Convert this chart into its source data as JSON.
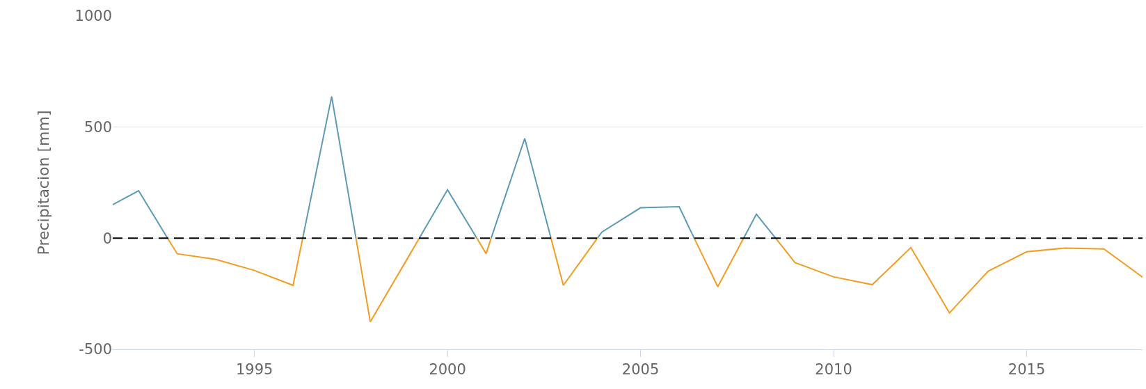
{
  "chart_data": {
    "type": "line",
    "ylabel": "Precipitacion [mm]",
    "series": [
      {
        "color": "#5d9ab5",
        "x": [
          1991.33,
          1992,
          1992.75,
          1995,
          1996.25,
          1997,
          1997.63,
          1998,
          1999.27,
          2000,
          2000.76,
          2001,
          2001.13,
          2002,
          2002.68,
          2003,
          2003.88,
          2004,
          2005,
          2006,
          2006.39,
          2007,
          2007.67,
          2008,
          2008.5
        ],
        "values": [
          151,
          214,
          0,
          null,
          0,
          638,
          0,
          null,
          0,
          218,
          0,
          null,
          0,
          449,
          0,
          null,
          0,
          28,
          137,
          142,
          0,
          null,
          0,
          108,
          0
        ]
      },
      {
        "color": "#f39c21",
        "x": [
          1992.75,
          1993,
          1994,
          1995,
          1996,
          1996.25,
          1997,
          1997.63,
          1998,
          1999,
          1999.27,
          2000,
          2000.76,
          2001,
          2001.13,
          2002,
          2002.68,
          2003,
          2003.88,
          2005,
          2006.39,
          2007,
          2007.67,
          2008,
          2008.5,
          2009,
          2010,
          2011,
          2012,
          2013,
          2014,
          2015,
          2016,
          2017,
          2018
        ],
        "values": [
          0,
          -70,
          -95,
          -145,
          -212,
          0,
          null,
          0,
          -376,
          -80,
          0,
          null,
          0,
          -69,
          0,
          null,
          0,
          -212,
          0,
          null,
          0,
          -218,
          0,
          null,
          0,
          -110,
          -174,
          -209,
          -42,
          -336,
          -149,
          -61,
          -44,
          -48,
          -175
        ]
      }
    ],
    "xlim": [
      1991.33,
      2018
    ],
    "xticks": [
      1995,
      2000,
      2005,
      2010,
      2015
    ],
    "ylim": [
      -500,
      1000
    ],
    "yticks": [
      -500,
      0,
      500,
      1000
    ],
    "grid": "y",
    "marker": "none",
    "line_style": "solid",
    "ref_lines": [
      {
        "axis": "y",
        "value": 0,
        "label": null,
        "color": "#000000",
        "line_style": "dashed"
      }
    ]
  }
}
